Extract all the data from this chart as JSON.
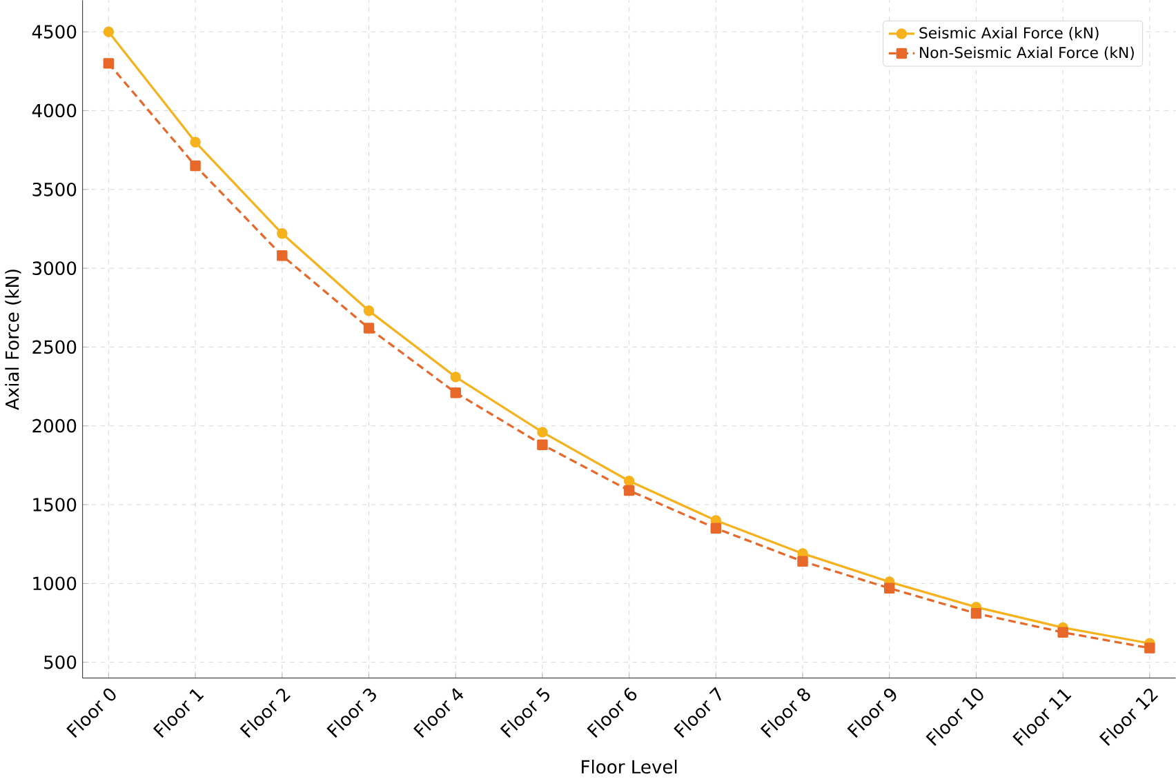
{
  "chart_data": {
    "type": "line",
    "xlabel": "Floor Level",
    "ylabel": "Axial Force (kN)",
    "categories": [
      "Floor 0",
      "Floor 1",
      "Floor 2",
      "Floor 3",
      "Floor 4",
      "Floor 5",
      "Floor 6",
      "Floor 7",
      "Floor 8",
      "Floor 9",
      "Floor 10",
      "Floor 11",
      "Floor 12"
    ],
    "series": [
      {
        "name": "Seismic Axial Force (kN)",
        "color": "#f5b21c",
        "marker": "circle",
        "line_style": "solid",
        "values": [
          4500,
          3800,
          3220,
          2730,
          2310,
          1960,
          1650,
          1400,
          1190,
          1010,
          850,
          720,
          620
        ]
      },
      {
        "name": "Non-Seismic Axial Force (kN)",
        "color": "#e8682a",
        "marker": "square",
        "line_style": "dashed",
        "values": [
          4300,
          3650,
          3080,
          2620,
          2210,
          1880,
          1590,
          1350,
          1140,
          970,
          810,
          690,
          590
        ]
      }
    ],
    "ylim": [
      400,
      4700
    ],
    "yticks": [
      500,
      1000,
      1500,
      2000,
      2500,
      3000,
      3500,
      4000,
      4500
    ],
    "grid": true,
    "legend": "top right"
  }
}
